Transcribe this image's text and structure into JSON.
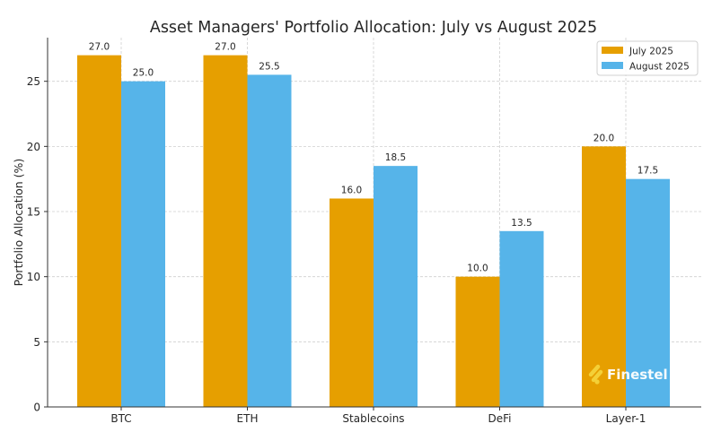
{
  "chart_data": {
    "type": "bar",
    "title": "Asset Managers' Portfolio Allocation: July vs August 2025",
    "xlabel": "",
    "ylabel": "Portfolio Allocation (%)",
    "categories": [
      "BTC",
      "ETH",
      "Stablecoins",
      "DeFi",
      "Layer-1"
    ],
    "series": [
      {
        "name": "July 2025",
        "values": [
          27.0,
          27.0,
          16.0,
          10.0,
          20.0
        ],
        "color": "#E69F00"
      },
      {
        "name": "August 2025",
        "values": [
          25.0,
          25.5,
          18.5,
          13.5,
          17.5
        ],
        "color": "#56B4E9"
      }
    ],
    "ylim": [
      0,
      28.35
    ],
    "yticks": [
      0,
      5,
      10,
      15,
      20,
      25
    ],
    "grid": true,
    "legend_position": "top-right",
    "data_labels": true
  },
  "watermark": {
    "text": "Finestel",
    "color": "#F5D33A"
  }
}
